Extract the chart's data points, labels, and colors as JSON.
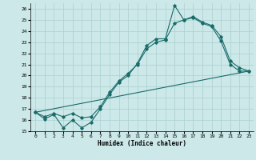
{
  "xlabel": "Humidex (Indice chaleur)",
  "xlim": [
    -0.5,
    23.5
  ],
  "ylim": [
    15,
    26.5
  ],
  "yticks": [
    15,
    16,
    17,
    18,
    19,
    20,
    21,
    22,
    23,
    24,
    25,
    26
  ],
  "xticks": [
    0,
    1,
    2,
    3,
    4,
    5,
    6,
    7,
    8,
    9,
    10,
    11,
    12,
    13,
    14,
    15,
    16,
    17,
    18,
    19,
    20,
    21,
    22,
    23
  ],
  "bg_color": "#cce8e8",
  "grid_color": "#aad0d0",
  "line_color": "#1a6b6b",
  "line1_x": [
    0,
    1,
    2,
    3,
    4,
    5,
    6,
    7,
    8,
    9,
    10,
    11,
    12,
    13,
    14,
    15,
    16,
    17,
    18,
    19,
    20,
    21,
    22,
    23
  ],
  "line1_y": [
    16.7,
    16.1,
    16.5,
    15.3,
    16.0,
    15.3,
    15.8,
    17.0,
    18.3,
    19.4,
    20.0,
    21.1,
    22.7,
    23.3,
    23.3,
    26.3,
    25.0,
    25.2,
    24.7,
    24.4,
    23.1,
    21.0,
    20.4,
    20.4
  ],
  "line2_x": [
    0,
    1,
    2,
    3,
    4,
    5,
    6,
    7,
    8,
    9,
    10,
    11,
    12,
    13,
    14,
    15,
    16,
    17,
    18,
    19,
    20,
    21,
    22,
    23
  ],
  "line2_y": [
    16.7,
    16.3,
    16.6,
    16.3,
    16.6,
    16.2,
    16.3,
    17.2,
    18.5,
    19.5,
    20.2,
    21.0,
    22.4,
    23.0,
    23.2,
    24.7,
    25.0,
    25.3,
    24.8,
    24.5,
    23.5,
    21.3,
    20.7,
    20.4
  ],
  "line3_x": [
    0,
    23
  ],
  "line3_y": [
    16.7,
    20.4
  ]
}
